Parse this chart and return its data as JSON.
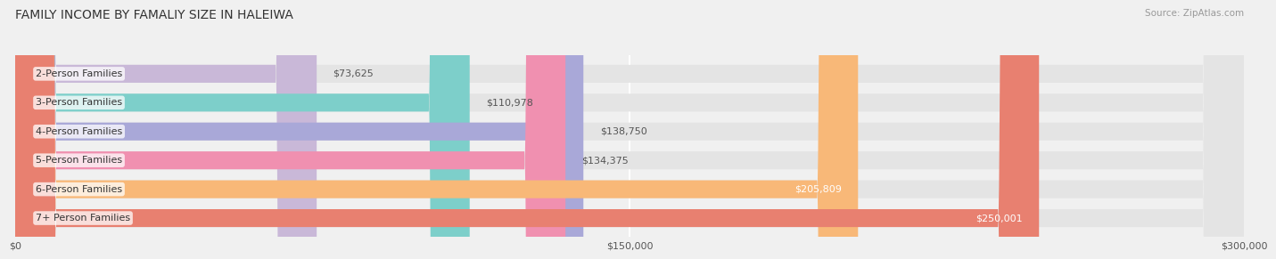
{
  "title": "FAMILY INCOME BY FAMALIY SIZE IN HALEIWA",
  "source": "Source: ZipAtlas.com",
  "categories": [
    "2-Person Families",
    "3-Person Families",
    "4-Person Families",
    "5-Person Families",
    "6-Person Families",
    "7+ Person Families"
  ],
  "values": [
    73625,
    110978,
    138750,
    134375,
    205809,
    250001
  ],
  "bar_colors": [
    "#c9b8d8",
    "#7dcfca",
    "#a9a8d8",
    "#f090b0",
    "#f8b878",
    "#e88070"
  ],
  "label_colors": [
    "#555555",
    "#555555",
    "#555555",
    "#555555",
    "#ffffff",
    "#ffffff"
  ],
  "value_labels": [
    "$73,625",
    "$110,978",
    "$138,750",
    "$134,375",
    "$205,809",
    "$250,001"
  ],
  "xlim": [
    0,
    300000
  ],
  "xticks": [
    0,
    150000,
    300000
  ],
  "xticklabels": [
    "$0",
    "$150,000",
    "$300,000"
  ],
  "background_color": "#f0f0f0",
  "bar_bg_color": "#e4e4e4",
  "title_fontsize": 10,
  "label_fontsize": 8,
  "value_fontsize": 8,
  "bar_height": 0.62
}
